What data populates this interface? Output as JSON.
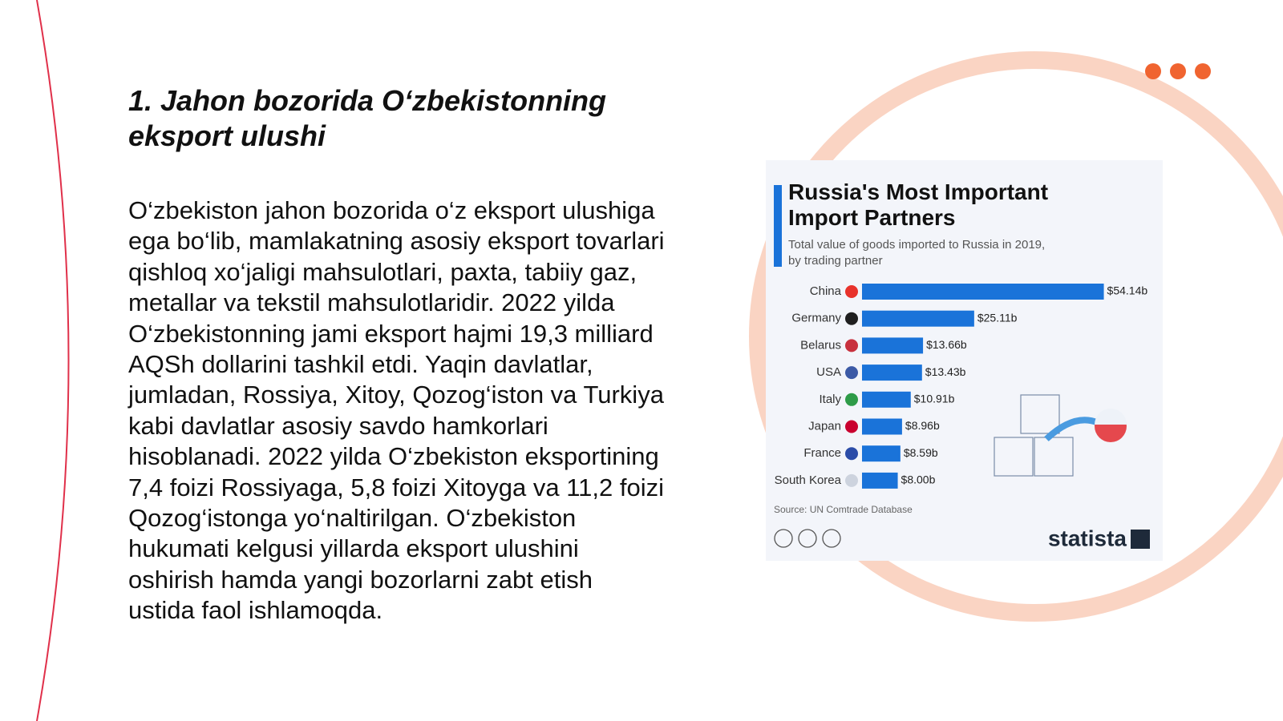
{
  "slide": {
    "title": "1. Jahon bozorida O‘zbekistonning eksport ulushi",
    "body": "O‘zbekiston jahon bozorida o‘z eksport ulushiga ega bo‘lib, mamlakatning asosiy eksport tovarlari qishloq xo‘jaligi mahsulotlari, paxta, tabiiy gaz, metallar va tekstil mahsulotlaridir. 2022 yilda O‘zbekistonning jami eksport hajmi 19,3 milliard AQSh dollarini tashkil etdi. Yaqin davlatlar, jumladan, Rossiya, Xitoy, Qozog‘iston va Turkiya kabi davlatlar asosiy savdo hamkorlari hisoblanadi. 2022 yilda O‘zbekiston eksportining 7,4 foizi Rossiyaga, 5,8 foizi Xitoyga va 11,2 foizi Qozog‘istonga yo‘naltirilgan. O‘zbekiston hukumati kelgusi yillarda eksport ulushini oshirish hamda yangi bozorlarni zabt etish ustida faol ishlamoqda."
  },
  "chart_data": {
    "type": "bar",
    "orientation": "horizontal",
    "title": "Russia's Most Important Import Partners",
    "subtitle": "Total value of goods imported to Russia in 2019, by trading partner",
    "categories": [
      "China",
      "Germany",
      "Belarus",
      "USA",
      "Italy",
      "Japan",
      "France",
      "South Korea"
    ],
    "values": [
      54.14,
      25.11,
      13.66,
      13.43,
      10.91,
      8.96,
      8.59,
      8.0
    ],
    "value_labels": [
      "$54.14b",
      "$25.11b",
      "$13.66b",
      "$13.43b",
      "$10.91b",
      "$8.96b",
      "$8.59b",
      "$8.00b"
    ],
    "color": "#1a73d9",
    "source": "Source: UN Comtrade Database",
    "brand": "statista"
  }
}
